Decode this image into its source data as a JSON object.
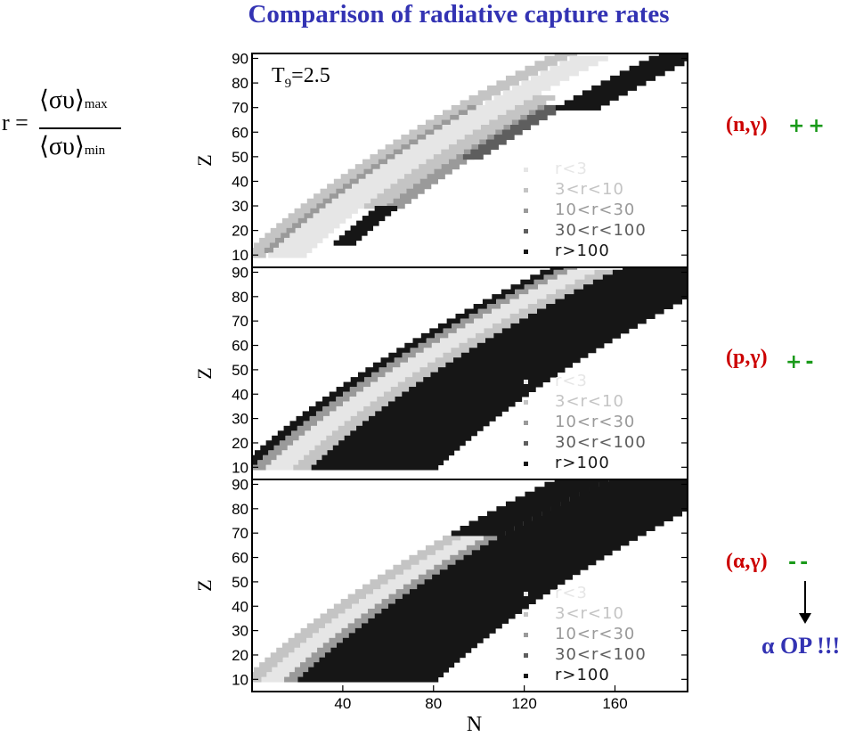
{
  "title": "Comparison of radiative capture rates",
  "formula": {
    "lhs": "r =",
    "numerator": "⟨συ⟩",
    "numerator_sub": "max",
    "denominator": "⟨συ⟩",
    "denominator_sub": "min"
  },
  "side_labels": [
    {
      "reaction": "(n,γ)",
      "signs": "++"
    },
    {
      "reaction": "(p,γ)",
      "signs": "+-"
    },
    {
      "reaction": "(α,γ)",
      "signs": "--"
    }
  ],
  "conclusion": "α OP !!!",
  "chart_data": [
    {
      "type": "heatmap",
      "panel": "(n,γ)",
      "annotation": "T9=2.5",
      "xlabel": "",
      "ylabel": "Z",
      "xlim": [
        0,
        192
      ],
      "ylim": [
        5,
        92
      ],
      "xticks": [],
      "yticks": [
        10,
        20,
        30,
        40,
        50,
        60,
        70,
        80,
        90
      ],
      "legend": [
        "r<3",
        "3<r<10",
        "10<r<30",
        "30<r<100",
        "r>100"
      ],
      "legend_position": "bottom-right",
      "colors": [
        "#e6e6e6",
        "#c4c4c4",
        "#9a9a9a",
        "#5e5e5e",
        "#161616"
      ],
      "bands": [
        {
          "class": 1,
          "z": [
            10,
            92
          ],
          "n_from_valley": [
            -16,
            -6
          ]
        },
        {
          "class": 2,
          "z": [
            12,
            70
          ],
          "n_from_valley": [
            -9,
            -5
          ]
        },
        {
          "class": 0,
          "z": [
            10,
            90
          ],
          "n_from_valley": [
            -5,
            12
          ]
        },
        {
          "class": 1,
          "z": [
            30,
            75
          ],
          "n_from_valley": [
            12,
            22
          ]
        },
        {
          "class": 2,
          "z": [
            30,
            70
          ],
          "n_from_valley": [
            22,
            30
          ]
        },
        {
          "class": 3,
          "z": [
            50,
            70
          ],
          "n_from_valley": [
            25,
            34
          ]
        },
        {
          "class": 4,
          "z": [
            15,
            30
          ],
          "n_from_valley": [
            18,
            28
          ]
        },
        {
          "class": 4,
          "z": [
            70,
            92
          ],
          "n_from_valley": [
            30,
            50
          ]
        }
      ]
    },
    {
      "type": "heatmap",
      "panel": "(p,γ)",
      "annotation": "",
      "xlabel": "",
      "ylabel": "Z",
      "xlim": [
        0,
        192
      ],
      "ylim": [
        5,
        92
      ],
      "xticks": [],
      "yticks": [
        10,
        20,
        30,
        40,
        50,
        60,
        70,
        80,
        90
      ],
      "legend": [
        "r<3",
        "3<r<10",
        "10<r<30",
        "30<r<100",
        "r>100"
      ],
      "legend_position": "bottom-right",
      "colors": [
        "#e6e6e6",
        "#c4c4c4",
        "#9a9a9a",
        "#5e5e5e",
        "#161616"
      ],
      "bands": [
        {
          "class": 4,
          "z": [
            10,
            92
          ],
          "n_from_valley": [
            -18,
            -12
          ]
        },
        {
          "class": 2,
          "z": [
            10,
            92
          ],
          "n_from_valley": [
            -12,
            -6
          ]
        },
        {
          "class": 0,
          "z": [
            10,
            90
          ],
          "n_from_valley": [
            -6,
            6
          ]
        },
        {
          "class": 1,
          "z": [
            10,
            90
          ],
          "n_from_valley": [
            6,
            14
          ]
        },
        {
          "class": 4,
          "z": [
            10,
            92
          ],
          "n_from_valley": [
            14,
            70
          ]
        }
      ]
    },
    {
      "type": "heatmap",
      "panel": "(α,γ)",
      "annotation": "",
      "xlabel": "N",
      "ylabel": "Z",
      "xlim": [
        0,
        192
      ],
      "ylim": [
        5,
        92
      ],
      "xticks": [
        40,
        80,
        120,
        160
      ],
      "yticks": [
        10,
        20,
        30,
        40,
        50,
        60,
        70,
        80,
        90
      ],
      "legend": [
        "r<3",
        "3<r<10",
        "10<r<30",
        "30<r<100",
        "r>100"
      ],
      "legend_position": "bottom-right",
      "colors": [
        "#e6e6e6",
        "#c4c4c4",
        "#9a9a9a",
        "#5e5e5e",
        "#161616"
      ],
      "bands": [
        {
          "class": 1,
          "z": [
            10,
            70
          ],
          "n_from_valley": [
            -16,
            -8
          ]
        },
        {
          "class": 0,
          "z": [
            10,
            70
          ],
          "n_from_valley": [
            -8,
            2
          ]
        },
        {
          "class": 2,
          "z": [
            10,
            70
          ],
          "n_from_valley": [
            2,
            8
          ]
        },
        {
          "class": 4,
          "z": [
            10,
            92
          ],
          "n_from_valley": [
            8,
            70
          ]
        },
        {
          "class": 4,
          "z": [
            70,
            92
          ],
          "n_from_valley": [
            -16,
            8
          ]
        }
      ]
    }
  ]
}
